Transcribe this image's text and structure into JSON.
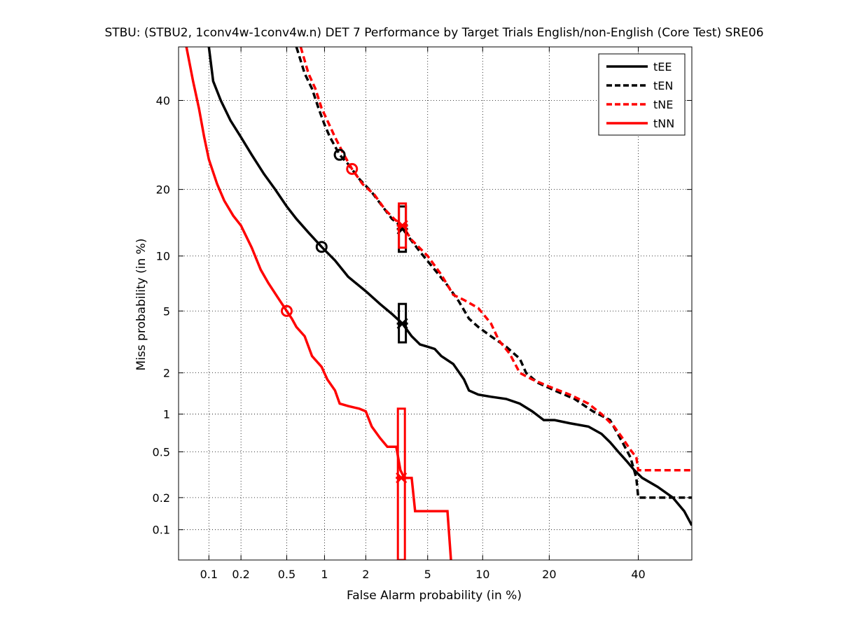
{
  "chart_data": {
    "type": "line",
    "subtype": "DET curve (normal-deviate axes)",
    "title": "STBU: (STBU2, 1conv4w-1conv4w.n) DET 7 Performance by Target Trials English/non-English (Core Test) SRE06",
    "xlabel": "False Alarm probability (in %)",
    "ylabel": "Miss probability (in %)",
    "x_ticks": [
      "0.1",
      "0.2",
      "0.5",
      "1",
      "2",
      "5",
      "10",
      "20",
      "40"
    ],
    "y_ticks": [
      "0.1",
      "0.2",
      "0.5",
      "1",
      "2",
      "5",
      "10",
      "20",
      "40"
    ],
    "x_tick_values": [
      0.1,
      0.2,
      0.5,
      1,
      2,
      5,
      10,
      20,
      40
    ],
    "y_tick_values": [
      0.1,
      0.2,
      0.5,
      1,
      2,
      5,
      10,
      20,
      40
    ],
    "xlim": [
      0.05,
      54
    ],
    "ylim": [
      0.05,
      54
    ],
    "scale": "normal deviate (probit)",
    "grid": true,
    "legend_position": "top-right",
    "series": [
      {
        "name": "tEE",
        "color": "#000000",
        "dash": "solid",
        "points": [
          [
            0.1,
            54
          ],
          [
            0.11,
            45
          ],
          [
            0.13,
            40
          ],
          [
            0.16,
            35
          ],
          [
            0.2,
            31
          ],
          [
            0.25,
            27
          ],
          [
            0.32,
            23
          ],
          [
            0.4,
            20
          ],
          [
            0.5,
            17
          ],
          [
            0.6,
            15
          ],
          [
            0.75,
            13
          ],
          [
            0.95,
            11.1
          ],
          [
            1.2,
            9.5
          ],
          [
            1.5,
            7.8
          ],
          [
            2.0,
            6.5
          ],
          [
            2.5,
            5.5
          ],
          [
            3.0,
            4.8
          ],
          [
            3.5,
            4.2
          ],
          [
            4.0,
            3.5
          ],
          [
            4.5,
            3.1
          ],
          [
            5.0,
            3.0
          ],
          [
            5.5,
            2.9
          ],
          [
            6.0,
            2.6
          ],
          [
            7.0,
            2.3
          ],
          [
            8.0,
            1.8
          ],
          [
            8.5,
            1.5
          ],
          [
            9.5,
            1.4
          ],
          [
            11,
            1.35
          ],
          [
            13,
            1.3
          ],
          [
            15,
            1.2
          ],
          [
            17,
            1.05
          ],
          [
            19,
            0.9
          ],
          [
            21,
            0.9
          ],
          [
            24,
            0.85
          ],
          [
            28,
            0.8
          ],
          [
            31,
            0.7
          ],
          [
            33,
            0.6
          ],
          [
            35,
            0.5
          ],
          [
            37,
            0.42
          ],
          [
            39,
            0.35
          ],
          [
            41,
            0.3
          ],
          [
            45,
            0.25
          ],
          [
            49,
            0.2
          ],
          [
            52,
            0.15
          ],
          [
            54,
            0.11
          ]
        ]
      },
      {
        "name": "tEN",
        "color": "#000000",
        "dash": "dashed",
        "points": [
          [
            0.6,
            54
          ],
          [
            0.7,
            47
          ],
          [
            0.8,
            43
          ],
          [
            0.9,
            38
          ],
          [
            1.0,
            34
          ],
          [
            1.1,
            31
          ],
          [
            1.3,
            27
          ],
          [
            1.5,
            25
          ],
          [
            1.8,
            22
          ],
          [
            2.2,
            19.5
          ],
          [
            2.6,
            17
          ],
          [
            3.0,
            15
          ],
          [
            3.4,
            14
          ],
          [
            3.8,
            12.5
          ],
          [
            4.5,
            10.5
          ],
          [
            5.5,
            8.5
          ],
          [
            6.5,
            7
          ],
          [
            7.5,
            5.7
          ],
          [
            8.5,
            4.5
          ],
          [
            9.5,
            4.0
          ],
          [
            11,
            3.5
          ],
          [
            13,
            3.0
          ],
          [
            15,
            2.5
          ],
          [
            16,
            2.0
          ],
          [
            18,
            1.7
          ],
          [
            21,
            1.5
          ],
          [
            25,
            1.3
          ],
          [
            29,
            1.05
          ],
          [
            33,
            0.9
          ],
          [
            36,
            0.6
          ],
          [
            38,
            0.45
          ],
          [
            39.5,
            0.3
          ],
          [
            40,
            0.2
          ],
          [
            48,
            0.2
          ],
          [
            54,
            0.2
          ]
        ]
      },
      {
        "name": "tNE",
        "color": "#ff0000",
        "dash": "dashed",
        "points": [
          [
            0.65,
            54
          ],
          [
            0.75,
            47
          ],
          [
            0.85,
            43
          ],
          [
            0.95,
            38
          ],
          [
            1.05,
            35
          ],
          [
            1.2,
            31
          ],
          [
            1.4,
            27
          ],
          [
            1.6,
            24
          ],
          [
            1.9,
            21
          ],
          [
            2.3,
            19
          ],
          [
            2.7,
            16.5
          ],
          [
            3.1,
            15
          ],
          [
            3.5,
            14
          ],
          [
            4.0,
            12
          ],
          [
            5.0,
            10
          ],
          [
            6.0,
            8
          ],
          [
            7.0,
            6.2
          ],
          [
            8.0,
            5.8
          ],
          [
            9.5,
            5.2
          ],
          [
            11,
            4.2
          ],
          [
            12,
            3.3
          ],
          [
            13.5,
            2.7
          ],
          [
            15,
            2.0
          ],
          [
            17,
            1.8
          ],
          [
            20,
            1.6
          ],
          [
            24,
            1.4
          ],
          [
            28,
            1.2
          ],
          [
            31,
            1.0
          ],
          [
            34,
            0.8
          ],
          [
            36,
            0.65
          ],
          [
            38,
            0.52
          ],
          [
            39.5,
            0.45
          ],
          [
            40,
            0.35
          ],
          [
            54,
            0.35
          ]
        ]
      },
      {
        "name": "tNN",
        "color": "#ff0000",
        "dash": "solid",
        "points": [
          [
            0.06,
            54
          ],
          [
            0.07,
            45
          ],
          [
            0.08,
            38
          ],
          [
            0.09,
            31
          ],
          [
            0.1,
            26
          ],
          [
            0.12,
            21
          ],
          [
            0.14,
            18
          ],
          [
            0.17,
            15.5
          ],
          [
            0.2,
            14
          ],
          [
            0.25,
            11
          ],
          [
            0.3,
            8.5
          ],
          [
            0.35,
            7.2
          ],
          [
            0.42,
            6.0
          ],
          [
            0.5,
            5.0
          ],
          [
            0.55,
            4.5
          ],
          [
            0.6,
            4.0
          ],
          [
            0.7,
            3.5
          ],
          [
            0.8,
            2.6
          ],
          [
            0.95,
            2.2
          ],
          [
            1.05,
            1.8
          ],
          [
            1.2,
            1.5
          ],
          [
            1.3,
            1.2
          ],
          [
            1.5,
            1.15
          ],
          [
            1.8,
            1.1
          ],
          [
            2.0,
            1.05
          ],
          [
            2.2,
            0.8
          ],
          [
            2.5,
            0.65
          ],
          [
            2.8,
            0.55
          ],
          [
            3.2,
            0.55
          ],
          [
            3.4,
            0.35
          ],
          [
            3.6,
            0.3
          ],
          [
            4.0,
            0.3
          ],
          [
            4.2,
            0.15
          ],
          [
            6.5,
            0.15
          ],
          [
            6.8,
            0.05
          ]
        ]
      }
    ],
    "min_cost_markers": [
      {
        "series": "tEE",
        "x": 0.95,
        "y": 11.1
      },
      {
        "series": "tEN",
        "x": 1.3,
        "y": 27
      },
      {
        "series": "tNE",
        "x": 1.6,
        "y": 24
      },
      {
        "series": "tNN",
        "x": 0.5,
        "y": 5.0
      }
    ],
    "actual_decision_markers": [
      {
        "series": "tEE",
        "x": 3.5,
        "y": 4.2,
        "y_low": 3.2,
        "y_high": 5.5
      },
      {
        "series": "tEN",
        "x": 3.5,
        "y": 13.5,
        "y_low": 10.5,
        "y_high": 17
      },
      {
        "series": "tNE",
        "x": 3.5,
        "y": 14,
        "y_low": 11,
        "y_high": 17.5
      },
      {
        "series": "tNN",
        "x": 3.45,
        "y": 0.3,
        "y_low": 0.05,
        "y_high": 1.1
      }
    ]
  }
}
